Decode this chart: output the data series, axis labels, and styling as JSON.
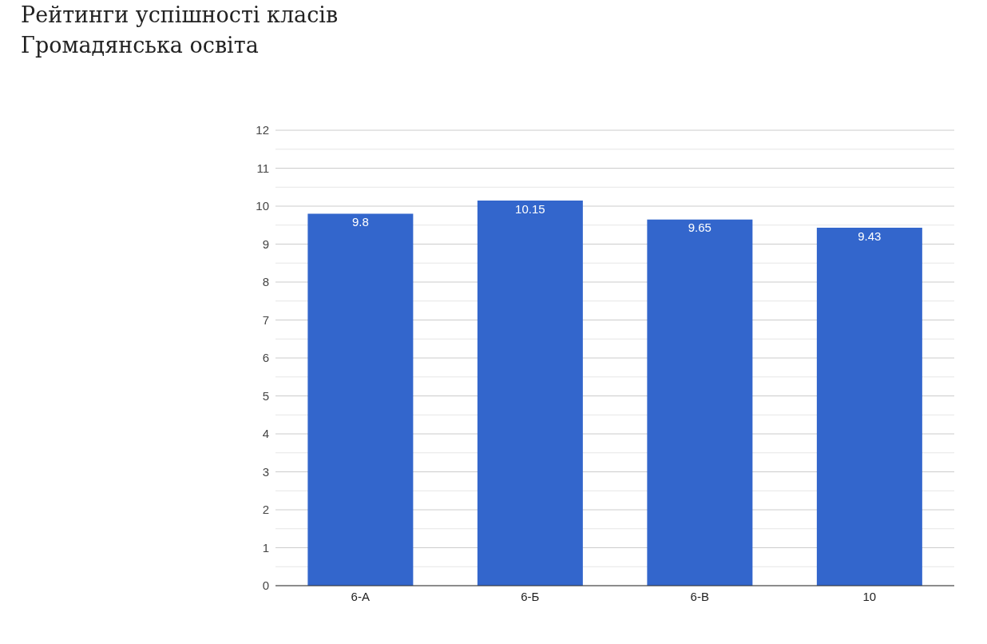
{
  "chart_data": {
    "type": "bar",
    "title": "Рейтинги успішності класів",
    "subtitle": "Громадянська освіта",
    "categories": [
      "6-А",
      "6-Б",
      "6-В",
      "10"
    ],
    "values": [
      9.8,
      10.15,
      9.65,
      9.43
    ],
    "color": "#3366cc",
    "ylim": [
      0,
      12
    ],
    "yticks": [
      0,
      {
        "value": 0.5,
        "label": null
      },
      1,
      {
        "value": 1.5,
        "label": null
      },
      2,
      {
        "value": 2.5,
        "label": null
      },
      3,
      {
        "value": 3.5,
        "label": null
      },
      4,
      {
        "value": 4.5,
        "label": null
      },
      5,
      {
        "value": 5.5,
        "label": null
      },
      6,
      {
        "value": 6.5,
        "label": null
      },
      7,
      {
        "value": 7.5,
        "label": null
      },
      8,
      {
        "value": 8.5,
        "label": null
      },
      9,
      {
        "value": 9.5,
        "label": null
      },
      10,
      {
        "value": 10.5,
        "label": null
      },
      11,
      {
        "value": 11.5,
        "label": null
      },
      12
    ],
    "grid": true,
    "data_labels": true,
    "legend": false
  }
}
